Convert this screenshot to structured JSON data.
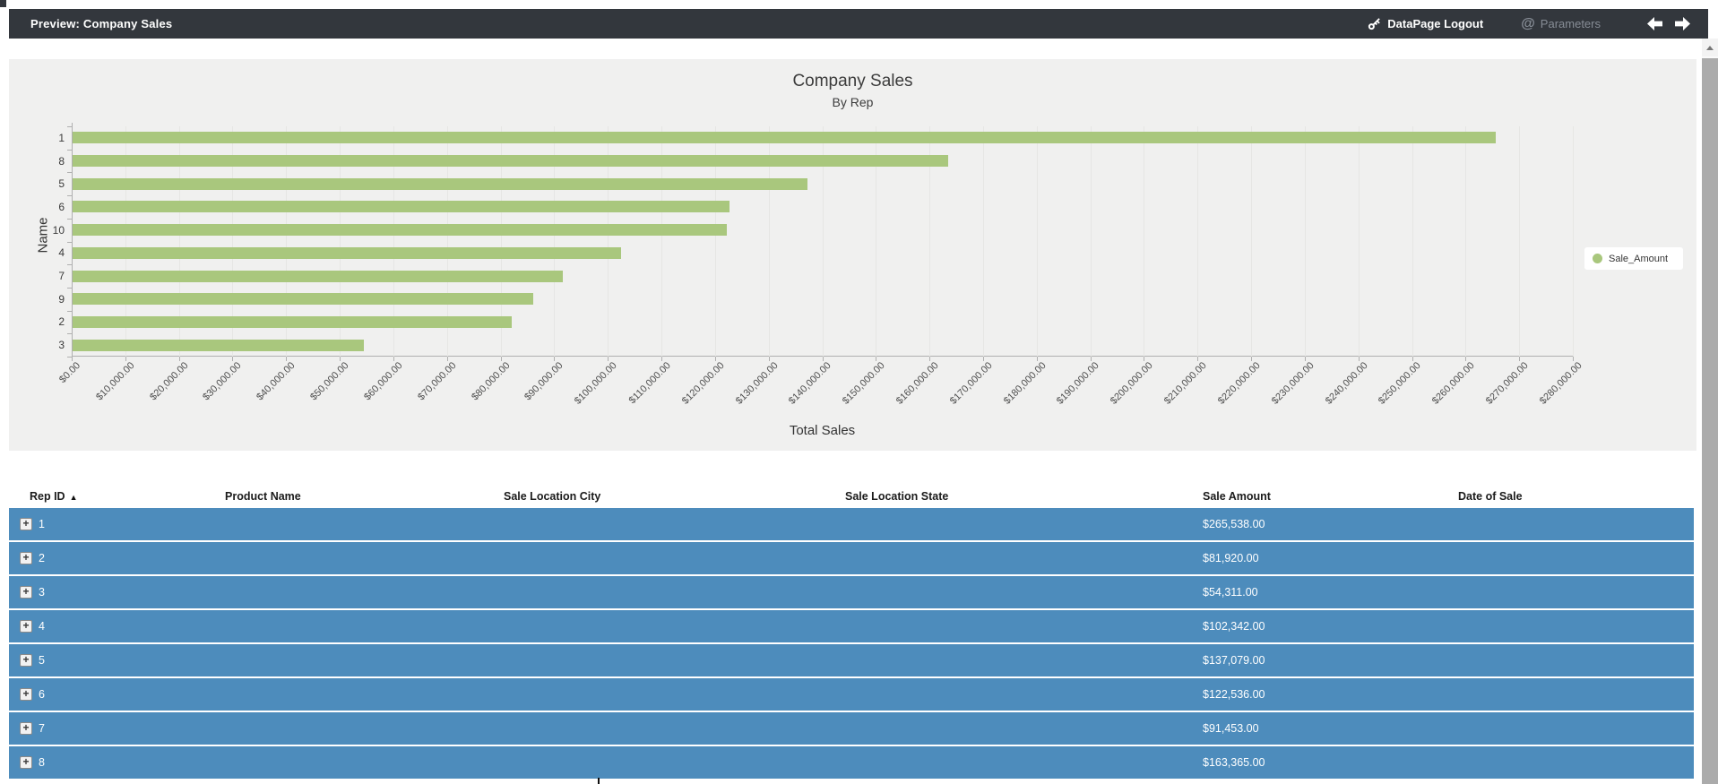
{
  "topbar": {
    "title": "Preview: Company Sales",
    "logout_label": "DataPage Logout",
    "parameters_label": "Parameters"
  },
  "icons": {
    "key_icon": "key",
    "at_icon": "@",
    "back_icon": "left-arrow",
    "forward_icon": "right-arrow",
    "sort_asc_icon": "▲",
    "expand_icon": "+",
    "scroll_up_icon": "▲"
  },
  "colors": {
    "topbar_bg": "#33373d",
    "chart_bg": "#f0f0ef",
    "bar_green": "#a9c77d",
    "row_blue": "#4d8cbc"
  },
  "chart_data": {
    "type": "bar",
    "orientation": "horizontal",
    "title": "Company Sales",
    "subtitle": "By Rep",
    "xlabel": "Total Sales",
    "ylabel": "Name",
    "categories": [
      "1",
      "8",
      "5",
      "6",
      "10",
      "4",
      "7",
      "9",
      "2",
      "3"
    ],
    "values": [
      265538,
      163365,
      137079,
      122536,
      122000,
      102342,
      91453,
      85900,
      81920,
      54311
    ],
    "xlim": [
      0,
      280000
    ],
    "x_tick_step": 10000,
    "x_tick_labels": [
      "$0.00",
      "$10,000.00",
      "$20,000.00",
      "$30,000.00",
      "$40,000.00",
      "$50,000.00",
      "$60,000.00",
      "$70,000.00",
      "$80,000.00",
      "$90,000.00",
      "$100,000.00",
      "$110,000.00",
      "$120,000.00",
      "$130,000.00",
      "$140,000.00",
      "$150,000.00",
      "$160,000.00",
      "$170,000.00",
      "$180,000.00",
      "$190,000.00",
      "$200,000.00",
      "$210,000.00",
      "$220,000.00",
      "$230,000.00",
      "$240,000.00",
      "$250,000.00",
      "$260,000.00",
      "$270,000.00",
      "$280,000.00"
    ],
    "grid": true,
    "legend": {
      "label": "Sale_Amount",
      "position": "right"
    }
  },
  "table": {
    "columns": [
      "Rep ID",
      "Product Name",
      "Sale Location City",
      "Sale Location State",
      "Sale Amount",
      "Date of Sale"
    ],
    "sorted_column": "Rep ID",
    "sort_direction": "asc",
    "rows": [
      {
        "rep_id": "1",
        "sale_amount": "$265,538.00"
      },
      {
        "rep_id": "2",
        "sale_amount": "$81,920.00"
      },
      {
        "rep_id": "3",
        "sale_amount": "$54,311.00"
      },
      {
        "rep_id": "4",
        "sale_amount": "$102,342.00"
      },
      {
        "rep_id": "5",
        "sale_amount": "$137,079.00"
      },
      {
        "rep_id": "6",
        "sale_amount": "$122,536.00"
      },
      {
        "rep_id": "7",
        "sale_amount": "$91,453.00"
      },
      {
        "rep_id": "8",
        "sale_amount": "$163,365.00"
      }
    ]
  }
}
